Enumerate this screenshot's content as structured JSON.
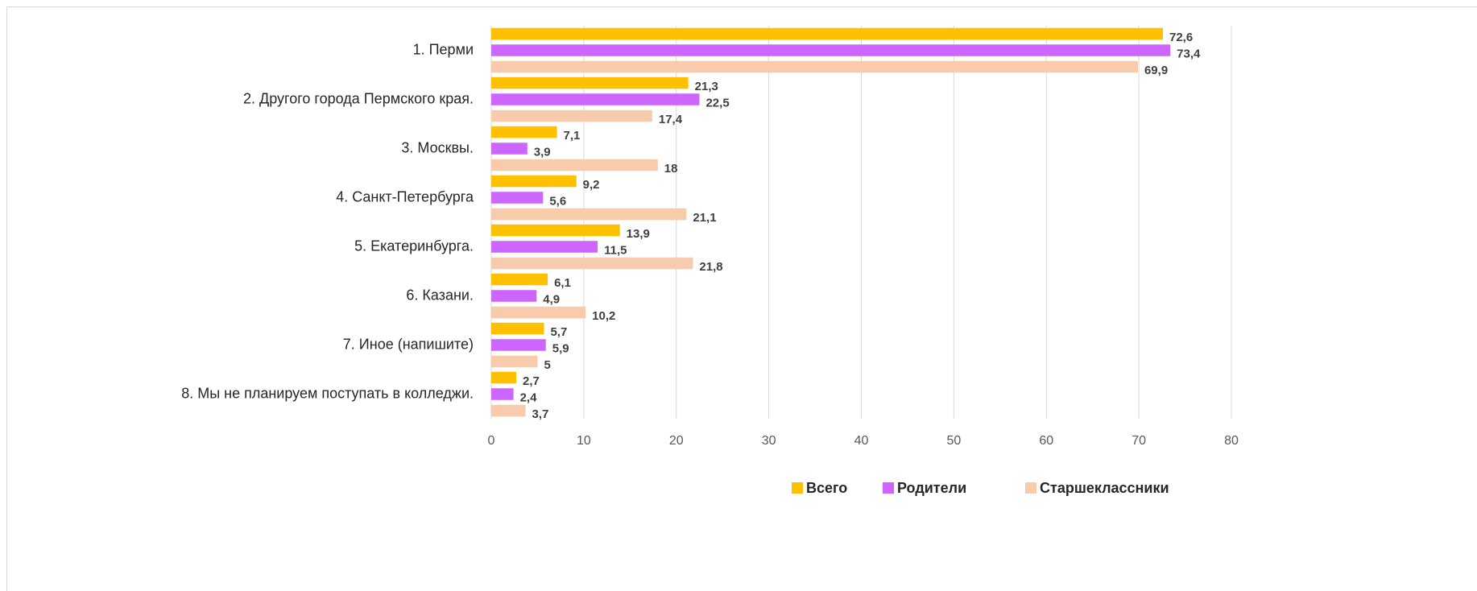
{
  "chart_data": {
    "type": "bar",
    "orientation": "horizontal",
    "categories": [
      "1. Перми",
      "2. Другого города Пермского края.",
      "3. Москвы.",
      "4. Санкт-Петербурга",
      "5. Екатеринбурга.",
      "6. Казани.",
      "7. Иное (напишите)",
      "8. Мы не планируем поступать в колледжи."
    ],
    "series": [
      {
        "name": "Всего",
        "color": "#ffc000",
        "values": [
          72.6,
          21.3,
          7.1,
          9.2,
          13.9,
          6.1,
          5.7,
          2.7
        ],
        "value_labels": [
          "72,6",
          "21,3",
          "7,1",
          "9,2",
          "13,9",
          "6,1",
          "5,7",
          "2,7"
        ]
      },
      {
        "name": "Родители",
        "color": "#cc66ff",
        "values": [
          73.4,
          22.5,
          3.9,
          5.6,
          11.5,
          4.9,
          5.9,
          2.4
        ],
        "value_labels": [
          "73,4",
          "22,5",
          "3,9",
          "5,6",
          "11,5",
          "4,9",
          "5,9",
          "2,4"
        ]
      },
      {
        "name": "Старшеклассники",
        "color": "#f8cbad",
        "values": [
          69.9,
          17.4,
          18,
          21.1,
          21.8,
          10.2,
          5,
          3.7
        ],
        "value_labels": [
          "69,9",
          "17,4",
          "18",
          "21,1",
          "21,8",
          "10,2",
          "5",
          "3,7"
        ]
      }
    ],
    "xlim": [
      0,
      80
    ],
    "xticks": [
      0,
      10,
      20,
      30,
      40,
      50,
      60,
      70,
      80
    ],
    "grid": true,
    "legend": "bottom-right"
  }
}
